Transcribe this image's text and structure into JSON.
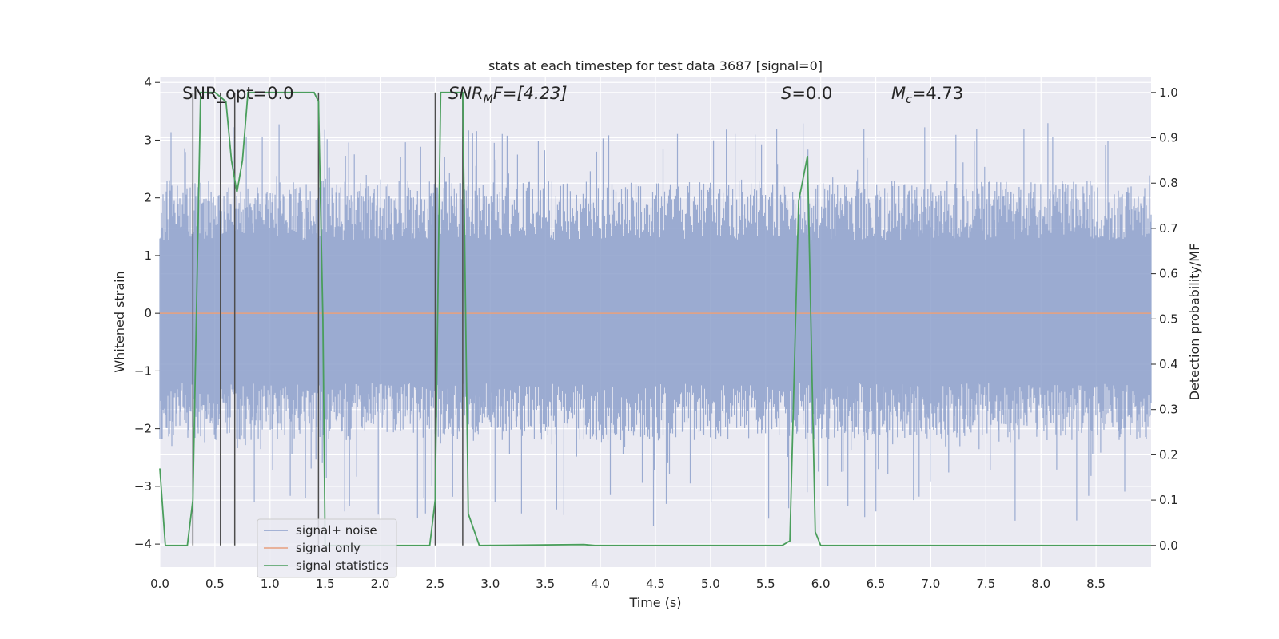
{
  "chart_data": {
    "type": "line",
    "title": "stats at each timestep for test data 3687 [signal=0]",
    "xlabel": "Time (s)",
    "ylabel": "Whitened strain",
    "y2label": "Detection probability/MF",
    "xlim": [
      0.0,
      9.0
    ],
    "ylim": [
      -4.4,
      4.1
    ],
    "y2lim": [
      -0.048,
      1.035
    ],
    "grid": true,
    "x_ticks": [
      "0.0",
      "0.5",
      "1.0",
      "1.5",
      "2.0",
      "2.5",
      "3.0",
      "3.5",
      "4.0",
      "4.5",
      "5.0",
      "5.5",
      "6.0",
      "6.5",
      "7.0",
      "7.5",
      "8.0",
      "8.5"
    ],
    "y_ticks": [
      "4",
      "3",
      "2",
      "1",
      "0",
      "−1",
      "−2",
      "−3",
      "−4"
    ],
    "y2_ticks": [
      "1.0",
      "0.9",
      "0.8",
      "0.7",
      "0.6",
      "0.5",
      "0.4",
      "0.3",
      "0.2",
      "0.1",
      "0.0"
    ],
    "legend_position": "lower-left",
    "annotations": {
      "snr_opt": "SNR_opt=0.0",
      "snr_mf_main": "SNR",
      "snr_mf_sub": "M",
      "snr_mf_rest": "F=[4.23]",
      "s_main": "S",
      "s_rest": "=0.0",
      "mc_main": "M",
      "mc_sub": "c",
      "mc_rest": "=4.73"
    },
    "series": [
      {
        "name": "signal+ noise",
        "color": "#8da0cb",
        "style": "noise",
        "envelope_min": -3.7,
        "envelope_max": 3.3,
        "typical_min": -2.2,
        "typical_max": 2.3
      },
      {
        "name": "signal only",
        "color": "#e8a07e",
        "x": [
          0.0,
          9.0
        ],
        "y": [
          0.0,
          0.0
        ]
      },
      {
        "name": "signal statistics",
        "color": "#4a9e5c",
        "axis": "right",
        "x": [
          0.0,
          0.05,
          0.25,
          0.3,
          0.37,
          0.5,
          0.55,
          0.6,
          0.65,
          0.7,
          0.75,
          0.8,
          1.4,
          1.44,
          1.48,
          1.5,
          2.45,
          2.5,
          2.55,
          2.75,
          2.8,
          2.9,
          3.85,
          3.95,
          5.65,
          5.72,
          5.8,
          5.88,
          5.95,
          6.0,
          9.0
        ],
        "y": [
          0.17,
          0.0,
          0.0,
          0.1,
          1.0,
          1.0,
          0.99,
          0.98,
          0.85,
          0.78,
          0.85,
          1.0,
          1.0,
          0.98,
          0.5,
          0.0,
          0.0,
          0.1,
          1.0,
          1.0,
          0.07,
          0.0,
          0.002,
          0.0,
          0.0,
          0.01,
          0.76,
          0.86,
          0.03,
          0.0,
          0.0
        ]
      }
    ],
    "vertical_markers": [
      0.3,
      0.55,
      0.68,
      1.44,
      2.5,
      2.75
    ]
  }
}
